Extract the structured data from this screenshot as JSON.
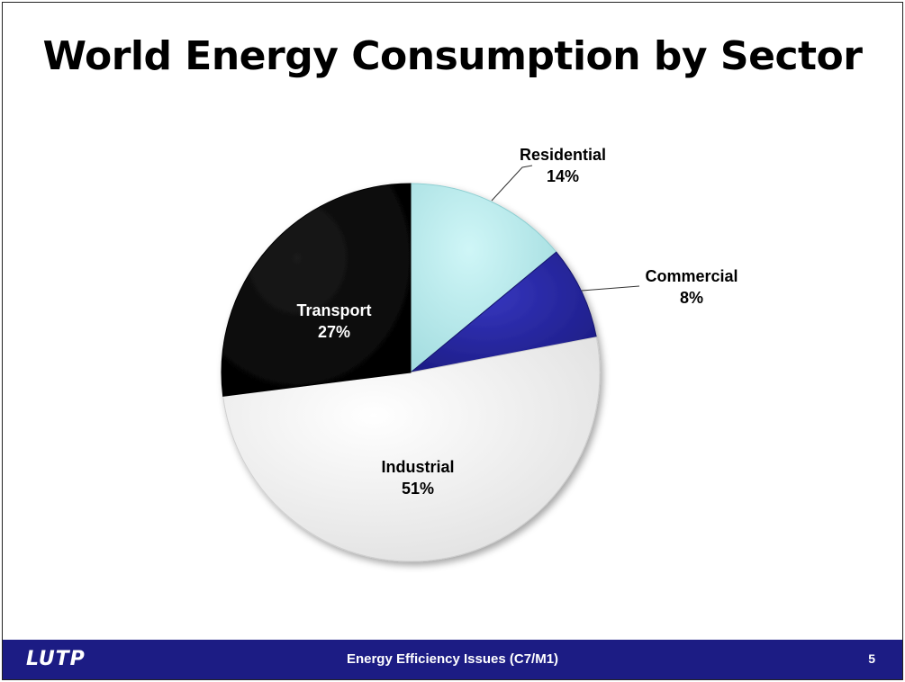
{
  "title": "World Energy Consumption by Sector",
  "footer": {
    "logo": "LUTP",
    "center_text": "Energy Efficiency Issues (C7/M1)",
    "page_number": "5"
  },
  "colors": {
    "footer_bg": "#1c1c84",
    "residential": "#b8ecee",
    "commercial": "#2a2aa8",
    "industrial": "#f2f2f2",
    "transport": "#050505"
  },
  "chart_data": {
    "type": "pie",
    "title": "World Energy Consumption by Sector",
    "categories": [
      "Residential",
      "Commercial",
      "Industrial",
      "Transport"
    ],
    "values": [
      14,
      8,
      51,
      27
    ],
    "value_labels": [
      "14%",
      "8%",
      "51%",
      "27%"
    ],
    "start_angle_deg": 0,
    "direction": "clockwise",
    "legend": "none",
    "labels_on_slices": true
  }
}
